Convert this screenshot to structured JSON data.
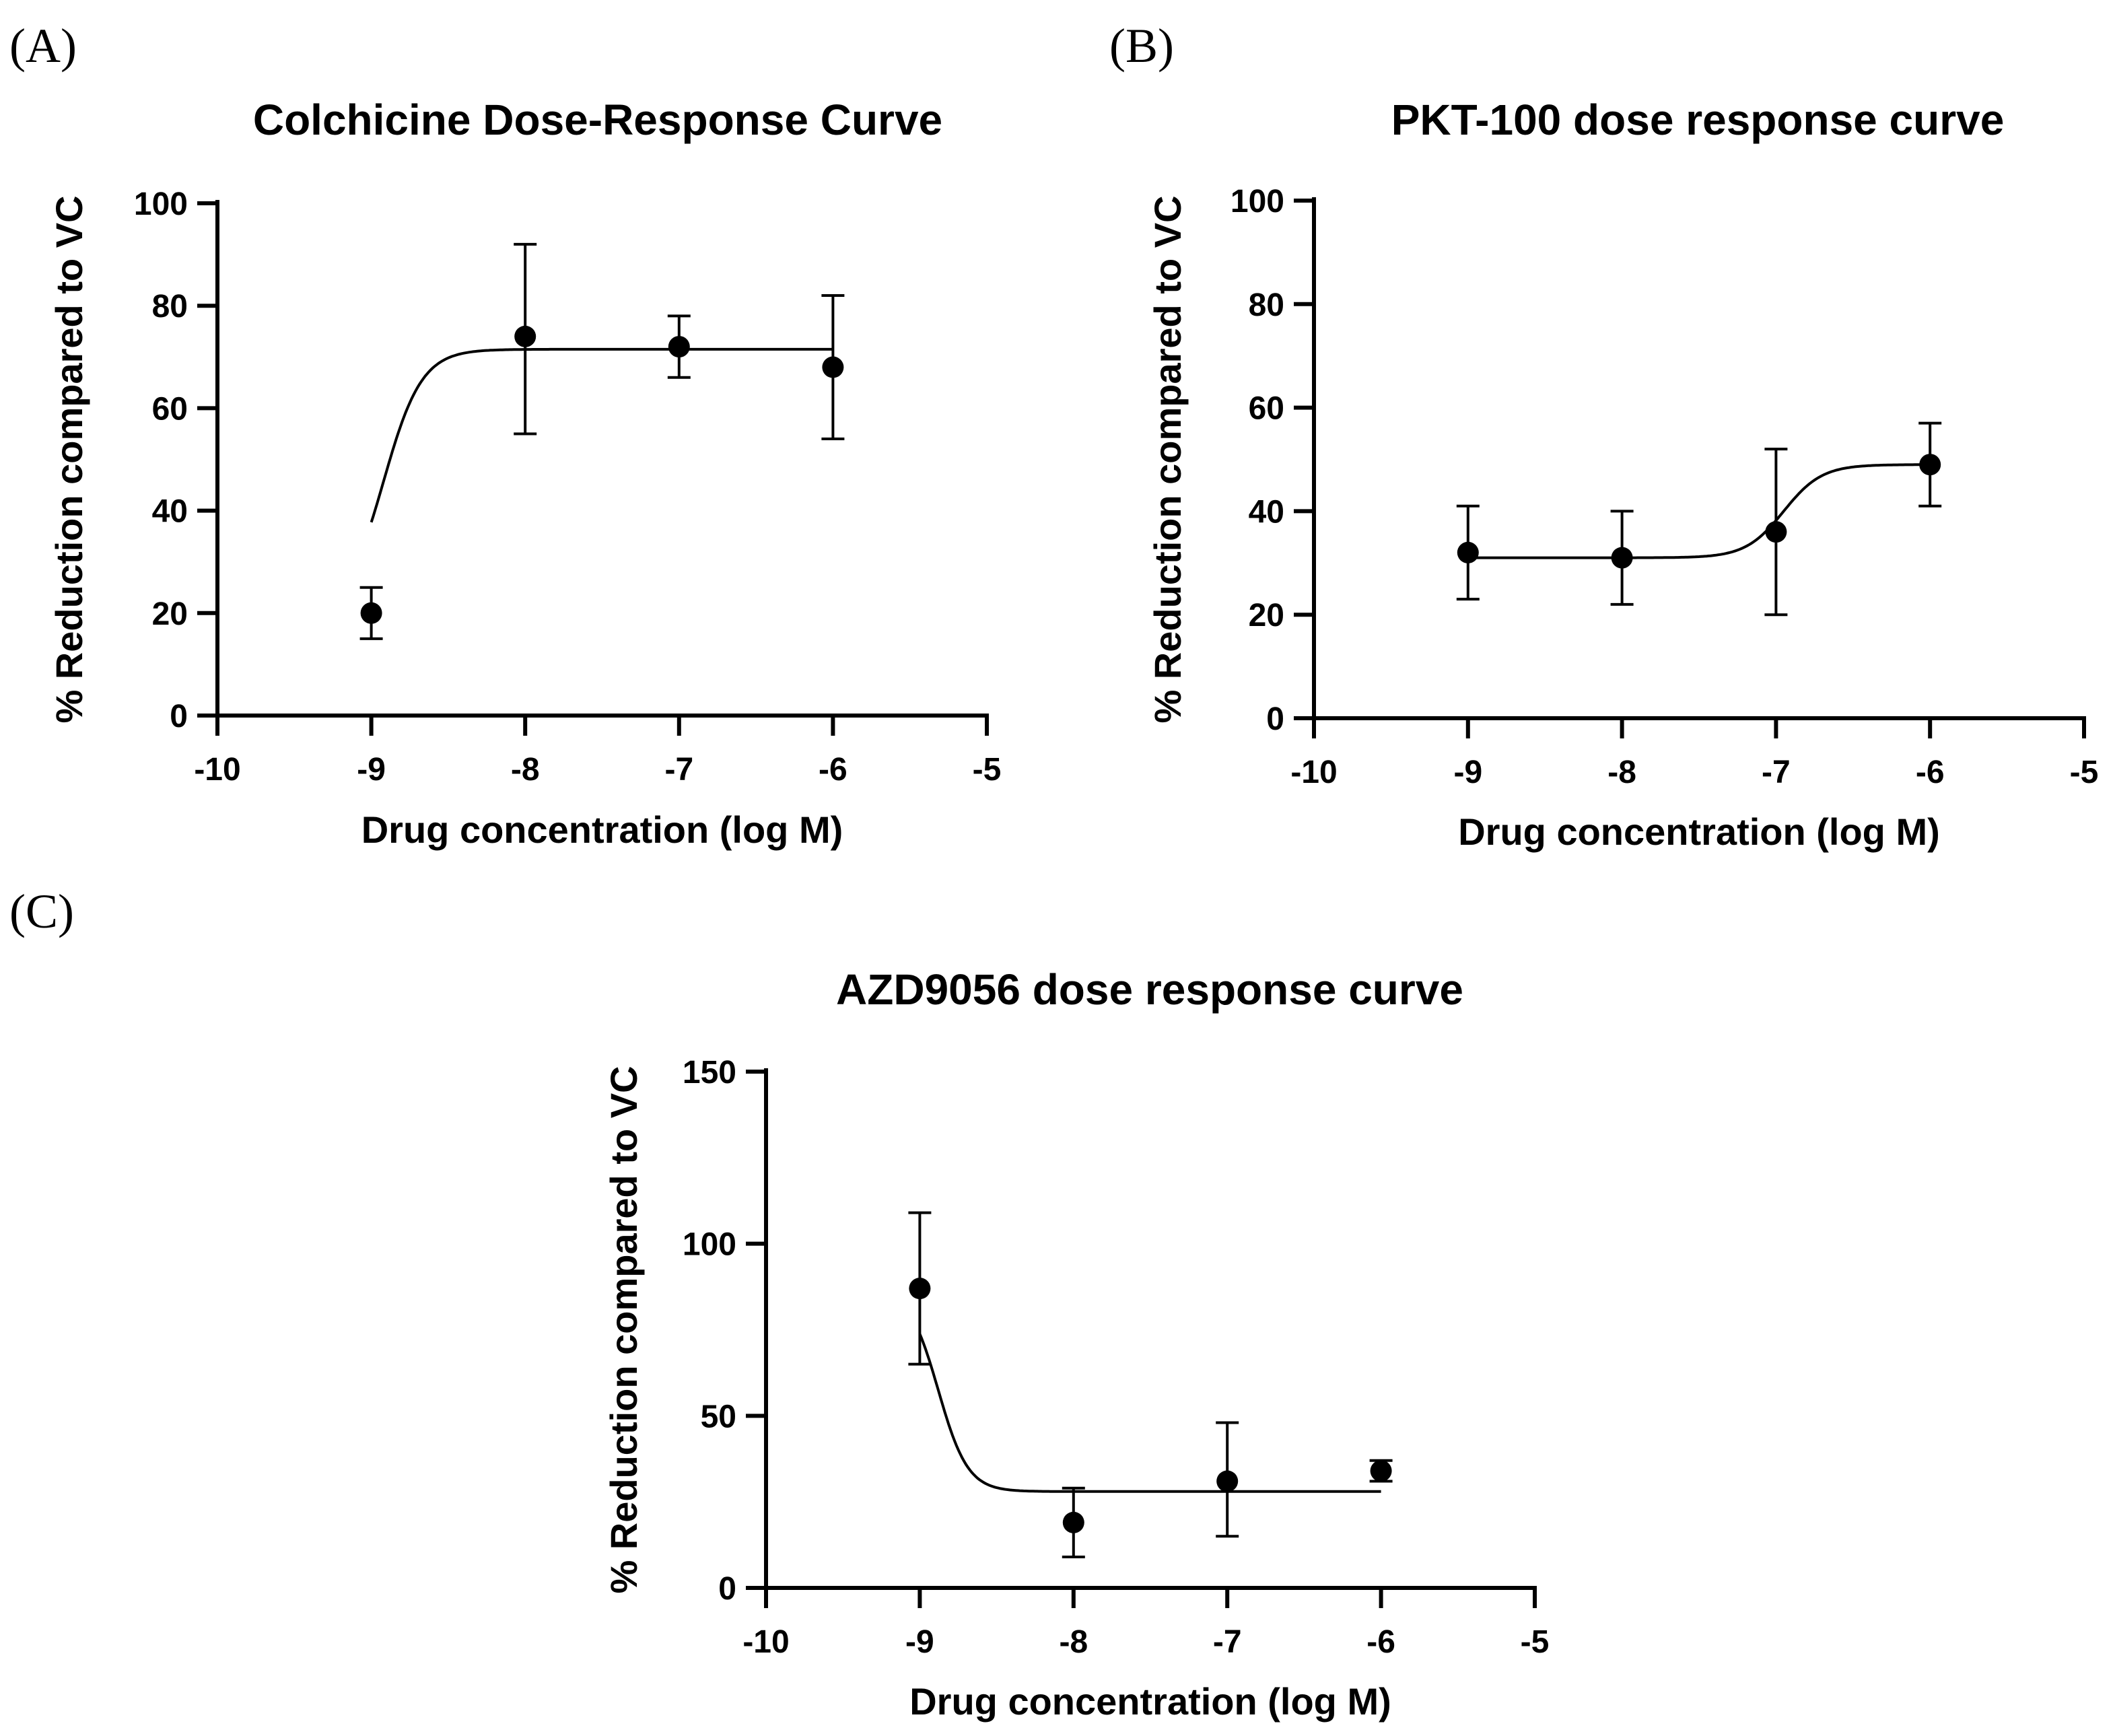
{
  "chart_data": [
    {
      "panel": "(A)",
      "type": "scatter",
      "title": "Colchicine Dose-Response Curve",
      "xlabel": "Drug concentration (log M)",
      "ylabel": "% Reduction compared to VC",
      "xlim": [
        -10,
        -5
      ],
      "ylim": [
        0,
        100
      ],
      "xticks": [
        -10,
        -9,
        -8,
        -7,
        -6,
        -5
      ],
      "yticks": [
        0,
        20,
        40,
        60,
        80,
        100
      ],
      "grid": false,
      "legend": "none",
      "points": [
        {
          "x": -9,
          "y": 20,
          "err_low": 15,
          "err_high": 25
        },
        {
          "x": -8,
          "y": 74,
          "err_low": 55,
          "err_high": 92
        },
        {
          "x": -7,
          "y": 72,
          "err_low": 66,
          "err_high": 78
        },
        {
          "x": -6,
          "y": 68,
          "err_low": 54,
          "err_high": 82
        }
      ],
      "fit": {
        "bottom": 20,
        "top": 71.5,
        "logEC50": -8.92,
        "hill": 3.5,
        "x_range": [
          -9,
          -6
        ]
      }
    },
    {
      "panel": "(B)",
      "type": "scatter",
      "title": "PKT-100 dose response curve",
      "xlabel": "Drug concentration (log M)",
      "ylabel": "% Reduction compared to VC",
      "xlim": [
        -10,
        -5
      ],
      "ylim": [
        0,
        100
      ],
      "xticks": [
        -10,
        -9,
        -8,
        -7,
        -6,
        -5
      ],
      "yticks": [
        0,
        20,
        40,
        60,
        80,
        100
      ],
      "grid": false,
      "legend": "none",
      "points": [
        {
          "x": -9,
          "y": 32,
          "err_low": 23,
          "err_high": 41
        },
        {
          "x": -8,
          "y": 31,
          "err_low": 22,
          "err_high": 40
        },
        {
          "x": -7,
          "y": 36,
          "err_low": 20,
          "err_high": 52
        },
        {
          "x": -6,
          "y": 49,
          "err_low": 41,
          "err_high": 57
        }
      ],
      "fit": {
        "bottom": 31,
        "top": 49,
        "logEC50": -6.95,
        "hill": 3.5,
        "x_range": [
          -9,
          -6
        ]
      }
    },
    {
      "panel": "(C)",
      "type": "scatter",
      "title": "AZD9056 dose response curve",
      "xlabel": "Drug concentration (log M)",
      "ylabel": "% Reduction compared to VC",
      "xlim": [
        -10,
        -5
      ],
      "ylim": [
        0,
        150
      ],
      "xticks": [
        -10,
        -9,
        -8,
        -7,
        -6,
        -5
      ],
      "yticks": [
        0,
        50,
        100,
        150
      ],
      "grid": false,
      "legend": "none",
      "points": [
        {
          "x": -9,
          "y": 87,
          "err_low": 65,
          "err_high": 109
        },
        {
          "x": -8,
          "y": 19,
          "err_low": 9,
          "err_high": 29
        },
        {
          "x": -7,
          "y": 31,
          "err_low": 15,
          "err_high": 48
        },
        {
          "x": -6,
          "y": 34,
          "err_low": 31,
          "err_high": 37
        }
      ],
      "fit": {
        "bottom": 87,
        "top": 28,
        "logEC50": -8.88,
        "hill": 4.5,
        "x_range": [
          -9,
          -6
        ]
      }
    }
  ]
}
